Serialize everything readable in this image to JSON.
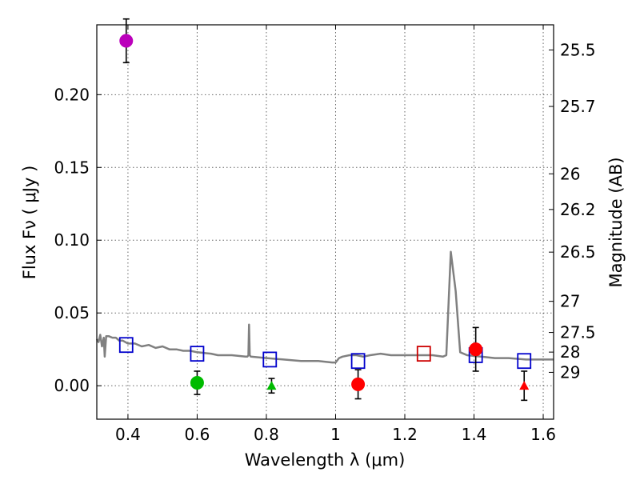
{
  "chart_data": {
    "type": "scatter",
    "title": "",
    "xlabel": "Wavelength  λ (μm)",
    "ylabel_left": "Flux  Fν  ( μJy )",
    "ylabel_right": "Magnitude (AB)",
    "xlim": [
      0.31,
      1.63
    ],
    "ylim": [
      -0.023,
      0.248
    ],
    "grid": true,
    "x_ticks": [
      0.4,
      0.6,
      0.8,
      1.0,
      1.2,
      1.4,
      1.6
    ],
    "x_tick_labels": [
      "0.4",
      "0.6",
      "0.8",
      "1",
      "1.2",
      "1.4",
      "1.6"
    ],
    "y_ticks": [
      0.0,
      0.05,
      0.1,
      0.15,
      0.2
    ],
    "y_tick_labels": [
      "0.00",
      "0.05",
      "0.10",
      "0.15",
      "0.20"
    ],
    "mag_ticks": [
      {
        "label": "25.5",
        "flux": 0.2307
      },
      {
        "label": "25.7",
        "flux": 0.1919
      },
      {
        "label": "26",
        "flux": 0.1456
      },
      {
        "label": "26.2",
        "flux": 0.1211
      },
      {
        "label": "26.5",
        "flux": 0.0918
      },
      {
        "label": "27",
        "flux": 0.058
      },
      {
        "label": "27.5",
        "flux": 0.0366
      },
      {
        "label": "28",
        "flux": 0.0231
      },
      {
        "label": "29",
        "flux": 0.0092
      }
    ],
    "series": [
      {
        "name": "Model spectrum",
        "kind": "line",
        "color": "#808080",
        "points": [
          [
            0.31,
            0.032
          ],
          [
            0.315,
            0.03
          ],
          [
            0.32,
            0.035
          ],
          [
            0.325,
            0.027
          ],
          [
            0.33,
            0.033
          ],
          [
            0.333,
            0.02
          ],
          [
            0.337,
            0.034
          ],
          [
            0.345,
            0.034
          ],
          [
            0.355,
            0.033
          ],
          [
            0.365,
            0.033
          ],
          [
            0.375,
            0.031
          ],
          [
            0.385,
            0.031
          ],
          [
            0.4,
            0.029
          ],
          [
            0.42,
            0.029
          ],
          [
            0.44,
            0.027
          ],
          [
            0.46,
            0.028
          ],
          [
            0.48,
            0.026
          ],
          [
            0.5,
            0.027
          ],
          [
            0.52,
            0.025
          ],
          [
            0.54,
            0.025
          ],
          [
            0.56,
            0.024
          ],
          [
            0.58,
            0.024
          ],
          [
            0.6,
            0.023
          ],
          [
            0.64,
            0.022
          ],
          [
            0.66,
            0.021
          ],
          [
            0.7,
            0.021
          ],
          [
            0.74,
            0.02
          ],
          [
            0.745,
            0.02
          ],
          [
            0.748,
            0.021
          ],
          [
            0.75,
            0.042
          ],
          [
            0.752,
            0.021
          ],
          [
            0.755,
            0.02
          ],
          [
            0.8,
            0.019
          ],
          [
            0.85,
            0.018
          ],
          [
            0.9,
            0.017
          ],
          [
            0.95,
            0.017
          ],
          [
            0.99,
            0.016
          ],
          [
            1.0,
            0.016
          ],
          [
            1.01,
            0.019
          ],
          [
            1.02,
            0.02
          ],
          [
            1.04,
            0.021
          ],
          [
            1.06,
            0.021
          ],
          [
            1.08,
            0.02
          ],
          [
            1.1,
            0.021
          ],
          [
            1.13,
            0.022
          ],
          [
            1.16,
            0.021
          ],
          [
            1.2,
            0.021
          ],
          [
            1.25,
            0.021
          ],
          [
            1.28,
            0.021
          ],
          [
            1.31,
            0.02
          ],
          [
            1.32,
            0.021
          ],
          [
            1.333,
            0.092
          ],
          [
            1.347,
            0.065
          ],
          [
            1.36,
            0.023
          ],
          [
            1.38,
            0.021
          ],
          [
            1.42,
            0.02
          ],
          [
            1.46,
            0.019
          ],
          [
            1.5,
            0.019
          ],
          [
            1.55,
            0.018
          ],
          [
            1.6,
            0.018
          ],
          [
            1.63,
            0.018
          ]
        ]
      },
      {
        "name": "Model photometry",
        "kind": "open-square",
        "color": "#0000cc",
        "points": [
          [
            0.395,
            0.028
          ],
          [
            0.6,
            0.022
          ],
          [
            0.81,
            0.018
          ],
          [
            1.065,
            0.017
          ],
          [
            1.405,
            0.021
          ],
          [
            1.545,
            0.017
          ]
        ]
      },
      {
        "name": "Model photometry (red)",
        "kind": "open-square",
        "color": "#cc0000",
        "points": [
          [
            1.255,
            0.022
          ]
        ]
      },
      {
        "name": "Observed (magenta)",
        "kind": "circle",
        "color": "#bb00bb",
        "points": [
          {
            "x": 0.395,
            "y": 0.237,
            "err": 0.015
          }
        ]
      },
      {
        "name": "Observed (green)",
        "kind": "circle",
        "color": "#00bb00",
        "points": [
          {
            "x": 0.6,
            "y": 0.002,
            "err": 0.008
          }
        ]
      },
      {
        "name": "Upper limit (green)",
        "kind": "triangle",
        "color": "#00bb00",
        "points": [
          {
            "x": 0.815,
            "y": 0.0,
            "err": 0.005
          }
        ]
      },
      {
        "name": "Observed (red)",
        "kind": "circle",
        "color": "#ff0000",
        "points": [
          {
            "x": 1.065,
            "y": 0.001,
            "err": 0.01
          },
          {
            "x": 1.405,
            "y": 0.025,
            "err": 0.015
          }
        ]
      },
      {
        "name": "Upper limit (red)",
        "kind": "triangle",
        "color": "#ff0000",
        "points": [
          {
            "x": 1.545,
            "y": 0.0,
            "err": 0.01
          }
        ]
      }
    ]
  }
}
